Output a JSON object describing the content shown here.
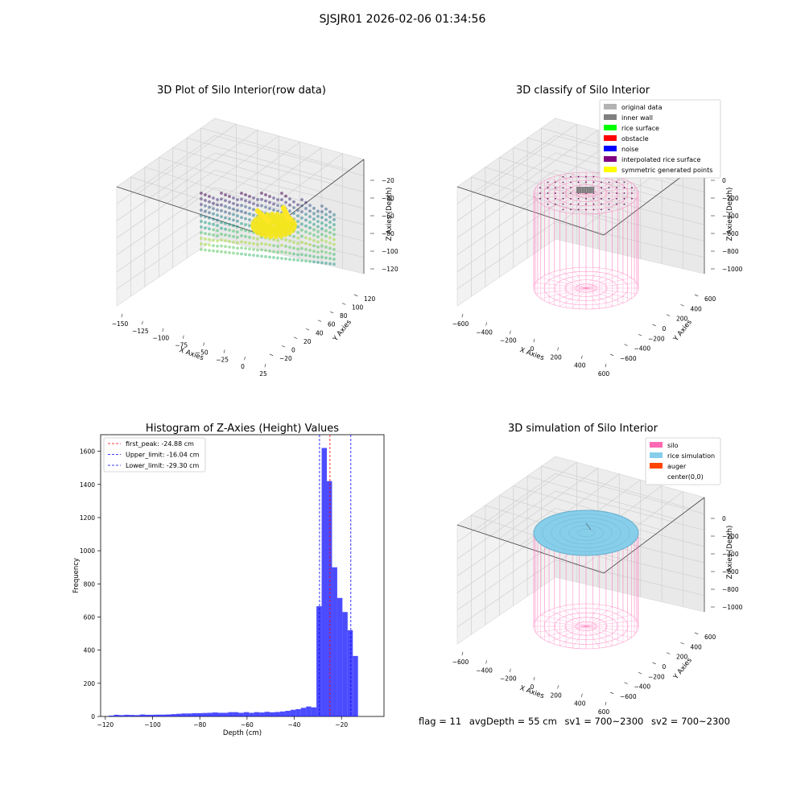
{
  "figure": {
    "suptitle": "SJSJR01 2026-02-06 01:34:56"
  },
  "panels": {
    "raw": {
      "title": "3D Plot of Silo Interior(row data)",
      "xlabel": "X Axies",
      "ylabel": "Y Axies",
      "zlabel": "Z Axies (Depth)",
      "xticks": [
        "−150",
        "−125",
        "−100",
        "−75",
        "−50",
        "−25",
        "0",
        "25"
      ],
      "yticks": [
        "−20",
        "0",
        "20",
        "40",
        "60",
        "80",
        "100",
        "120"
      ],
      "zticks": [
        "−20",
        "−40",
        "−60",
        "−80",
        "−100",
        "−120"
      ]
    },
    "classify": {
      "title": "3D classify of Silo Interior",
      "xlabel": "X Axies",
      "ylabel": "Y Axies",
      "zlabel": "Z Axies (Depth)",
      "xticks": [
        "−600",
        "−400",
        "−200",
        "0",
        "200",
        "400",
        "600"
      ],
      "yticks": [
        "−600",
        "−400",
        "−200",
        "0",
        "200",
        "400",
        "600"
      ],
      "zticks": [
        "0",
        "−200",
        "−400",
        "−600",
        "−800",
        "−1000"
      ],
      "legend": [
        {
          "label": "original data",
          "color": "#b3b3b3"
        },
        {
          "label": "inner wall",
          "color": "#808080"
        },
        {
          "label": "rice surface",
          "color": "#00ff00"
        },
        {
          "label": "obstacle",
          "color": "#ff0000"
        },
        {
          "label": "noise",
          "color": "#0000ff"
        },
        {
          "label": "interpolated rice surface",
          "color": "#800080"
        },
        {
          "label": "symmetric generated points",
          "color": "#ffff00"
        }
      ]
    },
    "simulation": {
      "title": "3D simulation of Silo Interior",
      "xlabel": "X Axies",
      "ylabel": "Y Axies",
      "zlabel": "Z Axies (Depth)",
      "xticks": [
        "−600",
        "−400",
        "−200",
        "0",
        "200",
        "400",
        "600"
      ],
      "yticks": [
        "−600",
        "−400",
        "−200",
        "0",
        "200",
        "400",
        "600"
      ],
      "zticks": [
        "0",
        "−200",
        "−400",
        "−600",
        "−800",
        "−1000"
      ],
      "legend": [
        {
          "label": "silo",
          "color": "#ff69b4"
        },
        {
          "label": "rice simulation",
          "color": "#87ceeb"
        },
        {
          "label": "auger",
          "color": "#ff4500"
        },
        {
          "label": "center(0,0)",
          "color": "#ffffff"
        }
      ]
    }
  },
  "chart_data": {
    "type": "bar",
    "title": "Histogram of Z-Axies (Height) Values",
    "xlabel": "Depth (cm)",
    "ylabel": "Frequency",
    "xlim": [
      -122,
      -2
    ],
    "ylim": [
      0,
      1700
    ],
    "xticks": [
      -120,
      -100,
      -80,
      -60,
      -40,
      -20
    ],
    "yticks": [
      0,
      200,
      400,
      600,
      800,
      1000,
      1200,
      1400,
      1600
    ],
    "bar_color": "#0000ff",
    "bin_width": 2.2,
    "bin_start": -118.6,
    "values": [
      5,
      10,
      8,
      10,
      9,
      8,
      12,
      10,
      10,
      11,
      11,
      12,
      14,
      16,
      18,
      18,
      20,
      20,
      21,
      22,
      24,
      22,
      22,
      26,
      26,
      22,
      26,
      22,
      26,
      24,
      28,
      25,
      27,
      30,
      34,
      40,
      44,
      52,
      60,
      55,
      665,
      1620,
      1420,
      900,
      715,
      630,
      520,
      365
    ],
    "lines": [
      {
        "label": "first_peak: -24.88 cm",
        "x": -24.88,
        "color": "#ff0000"
      },
      {
        "label": "Upper_limit: -16.04 cm",
        "x": -16.04,
        "color": "#0000ff"
      },
      {
        "label": "Lower_limit: -29.30 cm",
        "x": -29.3,
        "color": "#0000ff"
      }
    ]
  },
  "footer": {
    "flag": "flag = 11",
    "avg": "avgDepth = 55 cm",
    "sv1": "sv1 = 700~2300",
    "sv2": "sv2 = 700~2300"
  }
}
